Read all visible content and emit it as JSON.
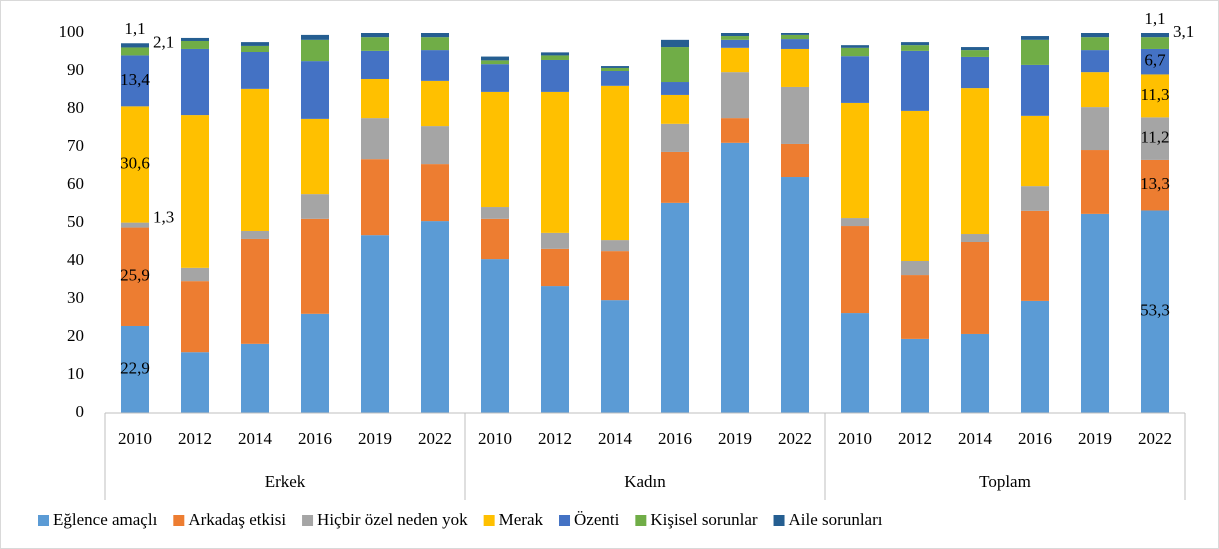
{
  "chart_data": {
    "type": "stacked_bar",
    "categories": [
      "2010",
      "2012",
      "2014",
      "2016",
      "2019",
      "2022",
      "2010",
      "2012",
      "2014",
      "2016",
      "2019",
      "2022",
      "2010",
      "2012",
      "2014",
      "2016",
      "2019",
      "2022"
    ],
    "groups": [
      "Erkek",
      "Kadın",
      "Toplam"
    ],
    "ylim": [
      0,
      100
    ],
    "yticks": [
      0,
      10,
      20,
      30,
      40,
      50,
      60,
      70,
      80,
      90,
      100
    ],
    "grid": false,
    "legend": "bottom",
    "series": [
      {
        "name": "Eğlence amaçlı",
        "color": "#5b9bd5",
        "values": [
          22.9,
          16.0,
          18.2,
          26.1,
          46.8,
          50.5,
          40.5,
          33.4,
          29.7,
          55.3,
          71.1,
          62.1,
          26.3,
          19.5,
          20.8,
          29.5,
          52.4,
          53.3
        ],
        "value_labels": [
          "22,9",
          null,
          null,
          null,
          null,
          null,
          null,
          null,
          null,
          null,
          null,
          null,
          null,
          null,
          null,
          null,
          null,
          "53,3"
        ]
      },
      {
        "name": "Arkadaş etkisi",
        "color": "#ed7d31",
        "values": [
          25.9,
          18.7,
          27.6,
          25.0,
          20.0,
          15.0,
          10.6,
          9.8,
          12.9,
          13.4,
          6.5,
          8.7,
          22.9,
          16.8,
          24.2,
          23.7,
          16.8,
          13.3
        ],
        "value_labels": [
          "25,9",
          null,
          null,
          null,
          null,
          null,
          null,
          null,
          null,
          null,
          null,
          null,
          null,
          null,
          null,
          null,
          null,
          "13,3"
        ]
      },
      {
        "name": "Hiçbir özel neden yok",
        "color": "#a5a5a5",
        "values": [
          1.3,
          3.5,
          2.1,
          6.5,
          10.8,
          10.0,
          3.1,
          4.2,
          2.9,
          7.4,
          12.1,
          15.0,
          2.1,
          3.7,
          2.1,
          6.5,
          11.3,
          11.2
        ],
        "value_labels": [
          "1,3",
          null,
          null,
          null,
          null,
          null,
          null,
          null,
          null,
          null,
          null,
          null,
          null,
          null,
          null,
          null,
          null,
          "11,2"
        ]
      },
      {
        "name": "Merak",
        "color": "#ffc000",
        "values": [
          30.6,
          40.2,
          37.4,
          19.8,
          10.3,
          11.9,
          30.3,
          37.1,
          40.6,
          7.6,
          6.4,
          10.0,
          30.3,
          39.5,
          38.4,
          18.5,
          9.2,
          11.3
        ],
        "value_labels": [
          "30,6",
          null,
          null,
          null,
          null,
          null,
          null,
          null,
          null,
          null,
          null,
          null,
          null,
          null,
          null,
          null,
          null,
          "11,3"
        ]
      },
      {
        "name": "Özenti",
        "color": "#4472c4",
        "values": [
          13.4,
          17.4,
          9.7,
          15.2,
          7.4,
          8.1,
          7.3,
          8.4,
          3.9,
          3.4,
          2.1,
          2.6,
          12.3,
          15.8,
          8.2,
          13.4,
          5.8,
          6.7
        ],
        "value_labels": [
          "13,4",
          null,
          null,
          null,
          null,
          null,
          null,
          null,
          null,
          null,
          null,
          null,
          null,
          null,
          null,
          null,
          null,
          "6,7"
        ]
      },
      {
        "name": "Kişisel sorunlar",
        "color": "#70ad47",
        "values": [
          2.1,
          2.1,
          1.6,
          5.6,
          3.6,
          3.4,
          1.0,
          1.2,
          0.8,
          9.2,
          1.0,
          1.1,
          2.2,
          1.5,
          1.8,
          6.6,
          3.4,
          3.1
        ],
        "value_labels": [
          "2,1",
          null,
          null,
          null,
          null,
          null,
          null,
          null,
          null,
          null,
          null,
          null,
          null,
          null,
          null,
          null,
          null,
          "3,1"
        ]
      },
      {
        "name": "Aile sorunları",
        "color": "#255e91",
        "values": [
          1.1,
          0.8,
          1.0,
          1.3,
          1.1,
          1.1,
          1.0,
          0.8,
          0.5,
          1.9,
          0.8,
          0.5,
          0.7,
          0.8,
          0.8,
          1.0,
          1.1,
          1.1
        ],
        "value_labels": [
          "1,1",
          null,
          null,
          null,
          null,
          null,
          null,
          null,
          null,
          null,
          null,
          null,
          null,
          null,
          null,
          null,
          null,
          "1,1"
        ]
      }
    ]
  }
}
